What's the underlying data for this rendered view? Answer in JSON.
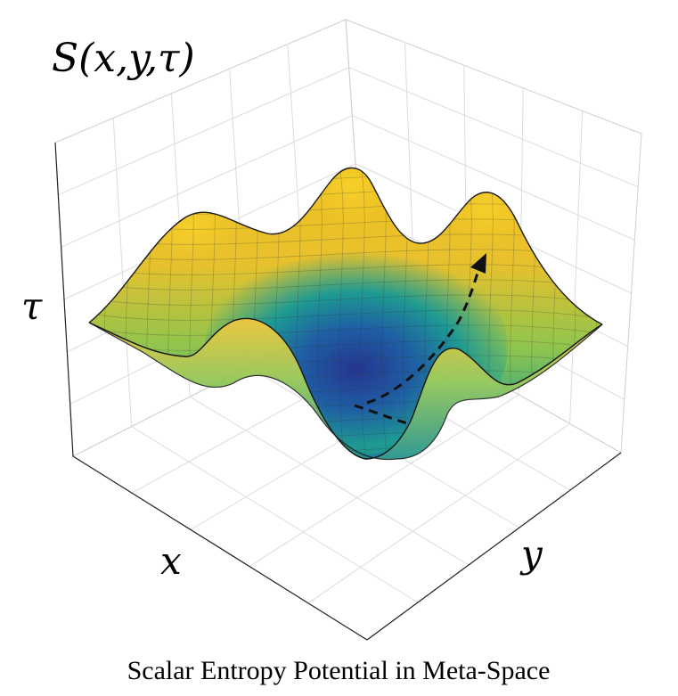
{
  "chart_data": {
    "type": "surface",
    "title": "S(x,y,τ)",
    "xlabel": "x",
    "ylabel": "y",
    "zlabel": "τ",
    "caption": "Scalar Entropy Potential in Meta-Space",
    "grid": true,
    "colormap": [
      "#2b3990",
      "#1f6fa8",
      "#21a38c",
      "#8cc44f",
      "#e9c22c",
      "#f2c21f"
    ],
    "annotation": "dashed trajectory from a central minimum up the slope to a peak"
  }
}
